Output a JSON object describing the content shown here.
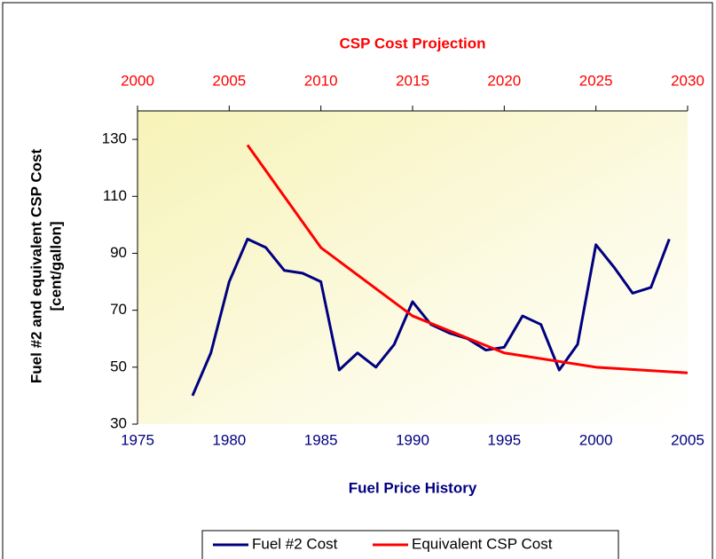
{
  "chart_data": {
    "type": "line",
    "x2label": "CSP Cost Projection",
    "xlabel": "Fuel Price History",
    "ylabel": [
      "Fuel #2 and equivalent CSP Cost",
      "[cent/gallon]"
    ],
    "xlim": [
      1975,
      2005
    ],
    "xticks": [
      1975,
      1980,
      1985,
      1990,
      1995,
      2000,
      2005
    ],
    "x2lim": [
      2000,
      2030
    ],
    "x2ticks": [
      2000,
      2005,
      2010,
      2015,
      2020,
      2025,
      2030
    ],
    "ylim": [
      30,
      140
    ],
    "yticks": [
      30,
      50,
      70,
      90,
      110,
      130
    ],
    "grid": false,
    "legend": "bottom",
    "series": [
      {
        "name": "Fuel #2 Cost",
        "color": "#000080",
        "x": [
          1978,
          1979,
          1980,
          1981,
          1982,
          1983,
          1984,
          1985,
          1986,
          1987,
          1988,
          1989,
          1990,
          1991,
          1992,
          1993,
          1994,
          1995,
          1996,
          1997,
          1998,
          1999,
          2000,
          2001,
          2002,
          2003,
          2004
        ],
        "values": [
          40,
          55,
          80,
          95,
          92,
          84,
          83,
          80,
          49,
          55,
          50,
          58,
          73,
          65,
          62,
          60,
          56,
          57,
          68,
          65,
          49,
          58,
          93,
          85,
          76,
          78,
          95
        ]
      },
      {
        "name": "Equivalent CSP Cost",
        "color": "#ff0000",
        "axis": "x2",
        "x": [
          2006,
          2010,
          2015,
          2020,
          2025,
          2030
        ],
        "values": [
          128,
          92,
          68,
          55,
          50,
          48
        ]
      }
    ]
  }
}
